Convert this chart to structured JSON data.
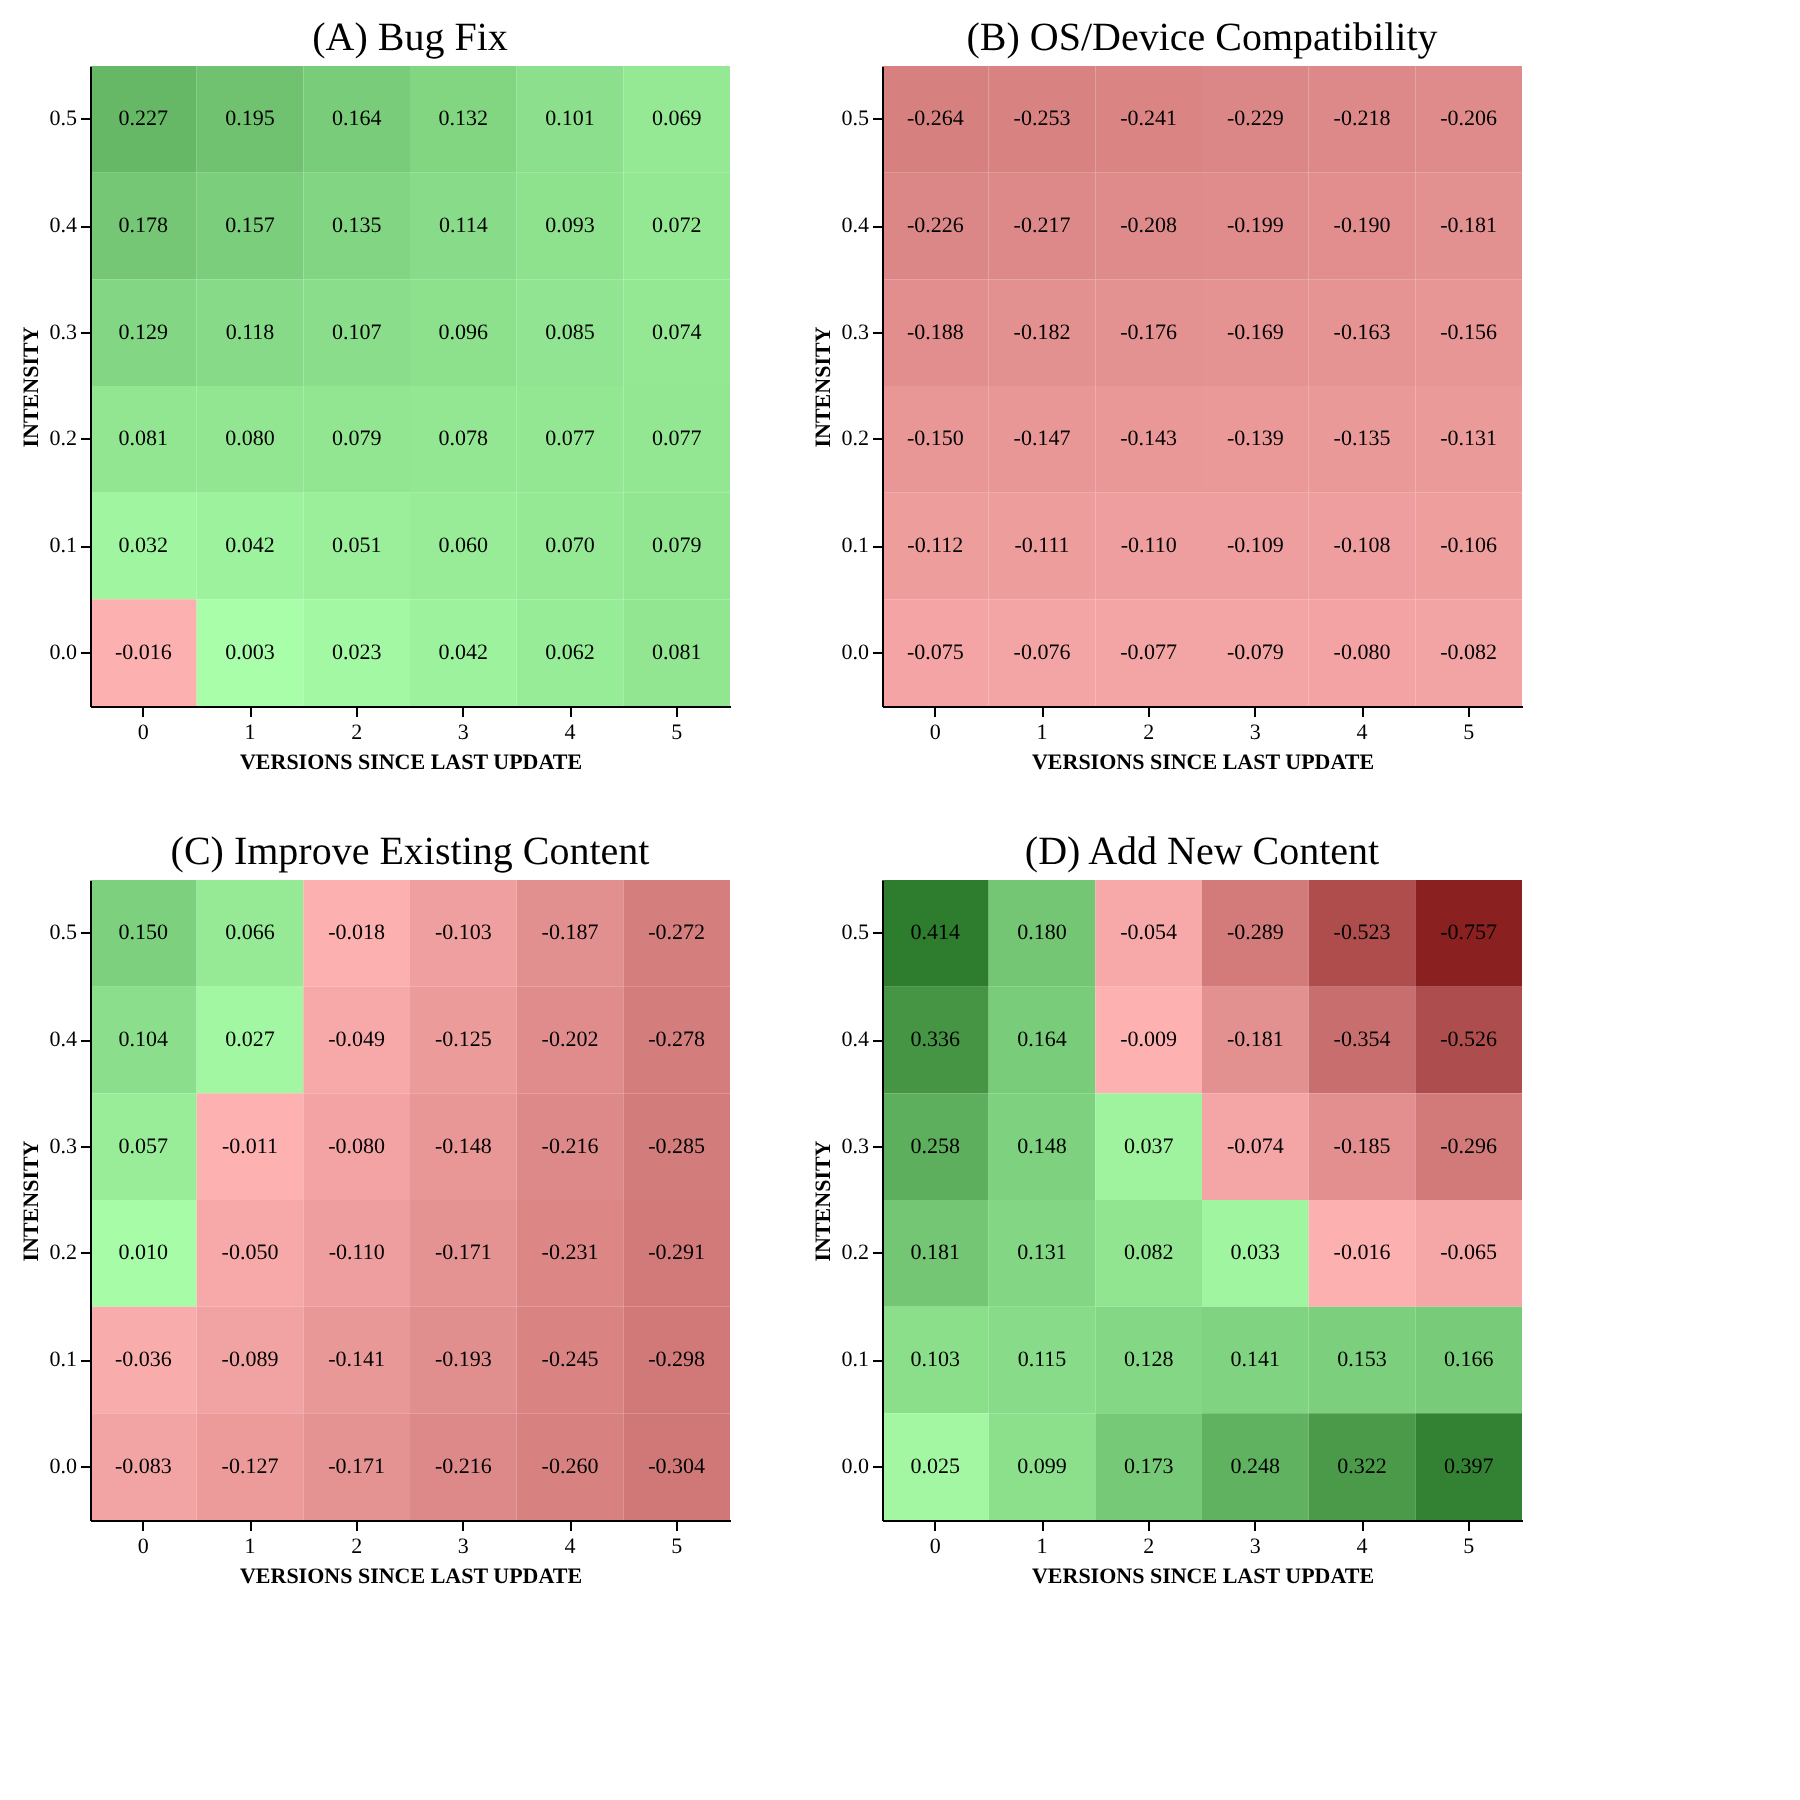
{
  "chart_data": [
    {
      "type": "heatmap",
      "data_labels": true,
      "cell_labels": [
        [
          "0.227",
          "0.195",
          "0.164",
          "0.132",
          "0.101",
          "0.069"
        ],
        [
          "0.178",
          "0.157",
          "0.135",
          "0.114",
          "0.093",
          "0.072"
        ],
        [
          "0.129",
          "0.118",
          "0.107",
          "0.096",
          "0.085",
          "0.074"
        ],
        [
          "0.081",
          "0.080",
          "0.079",
          "0.078",
          "0.077",
          "0.077"
        ],
        [
          "0.032",
          "0.042",
          "0.051",
          "0.060",
          "0.070",
          "0.079"
        ],
        [
          "-0.016",
          "0.003",
          "0.023",
          "0.042",
          "0.062",
          "0.081"
        ]
      ],
      "title": "(A) Bug Fix",
      "xlabel": "VERSIONS SINCE LAST UPDATE",
      "ylabel": "INTENSITY",
      "categories": [
        "0",
        "1",
        "2",
        "3",
        "4",
        "5"
      ],
      "y_categories": [
        "0.5",
        "0.4",
        "0.3",
        "0.2",
        "0.1",
        "0.0"
      ],
      "cells": [
        [
          0.227,
          0.195,
          0.164,
          0.132,
          0.101,
          0.069
        ],
        [
          0.178,
          0.157,
          0.135,
          0.114,
          0.093,
          0.072
        ],
        [
          0.129,
          0.118,
          0.107,
          0.096,
          0.085,
          0.074
        ],
        [
          0.081,
          0.08,
          0.079,
          0.078,
          0.077,
          0.077
        ],
        [
          0.032,
          0.042,
          0.051,
          0.06,
          0.07,
          0.079
        ],
        [
          -0.016,
          0.003,
          0.023,
          0.042,
          0.062,
          0.081
        ]
      ],
      "grid": false
    },
    {
      "type": "heatmap",
      "data_labels": true,
      "cell_labels": [
        [
          "-0.264",
          "-0.253",
          "-0.241",
          "-0.229",
          "-0.218",
          "-0.206"
        ],
        [
          "-0.226",
          "-0.217",
          "-0.208",
          "-0.199",
          "-0.190",
          "-0.181"
        ],
        [
          "-0.188",
          "-0.182",
          "-0.176",
          "-0.169",
          "-0.163",
          "-0.156"
        ],
        [
          "-0.150",
          "-0.147",
          "-0.143",
          "-0.139",
          "-0.135",
          "-0.131"
        ],
        [
          "-0.112",
          "-0.111",
          "-0.110",
          "-0.109",
          "-0.108",
          "-0.106"
        ],
        [
          "-0.075",
          "-0.076",
          "-0.077",
          "-0.079",
          "-0.080",
          "-0.082"
        ]
      ],
      "title": "(B) OS/Device Compatibility",
      "xlabel": "VERSIONS SINCE LAST UPDATE",
      "ylabel": "INTENSITY",
      "categories": [
        "0",
        "1",
        "2",
        "3",
        "4",
        "5"
      ],
      "y_categories": [
        "0.5",
        "0.4",
        "0.3",
        "0.2",
        "0.1",
        "0.0"
      ],
      "cells": [
        [
          -0.264,
          -0.253,
          -0.241,
          -0.229,
          -0.218,
          -0.206
        ],
        [
          -0.226,
          -0.217,
          -0.208,
          -0.199,
          -0.19,
          -0.181
        ],
        [
          -0.188,
          -0.182,
          -0.176,
          -0.169,
          -0.163,
          -0.156
        ],
        [
          -0.15,
          -0.147,
          -0.143,
          -0.139,
          -0.135,
          -0.131
        ],
        [
          -0.112,
          -0.111,
          -0.11,
          -0.109,
          -0.108,
          -0.106
        ],
        [
          -0.075,
          -0.076,
          -0.077,
          -0.079,
          -0.08,
          -0.082
        ]
      ],
      "grid": false
    },
    {
      "type": "heatmap",
      "data_labels": true,
      "cell_labels": [
        [
          "0.150",
          "0.066",
          "-0.018",
          "-0.103",
          "-0.187",
          "-0.272"
        ],
        [
          "0.104",
          "0.027",
          "-0.049",
          "-0.125",
          "-0.202",
          "-0.278"
        ],
        [
          "0.057",
          "-0.011",
          "-0.080",
          "-0.148",
          "-0.216",
          "-0.285"
        ],
        [
          "0.010",
          "-0.050",
          "-0.110",
          "-0.171",
          "-0.231",
          "-0.291"
        ],
        [
          "-0.036",
          "-0.089",
          "-0.141",
          "-0.193",
          "-0.245",
          "-0.298"
        ],
        [
          "-0.083",
          "-0.127",
          "-0.171",
          "-0.216",
          "-0.260",
          "-0.304"
        ]
      ],
      "title": "(C) Improve Existing Content",
      "xlabel": "VERSIONS SINCE LAST UPDATE",
      "ylabel": "INTENSITY",
      "categories": [
        "0",
        "1",
        "2",
        "3",
        "4",
        "5"
      ],
      "y_categories": [
        "0.5",
        "0.4",
        "0.3",
        "0.2",
        "0.1",
        "0.0"
      ],
      "cells": [
        [
          0.15,
          0.066,
          -0.018,
          -0.103,
          -0.187,
          -0.272
        ],
        [
          0.104,
          0.027,
          -0.049,
          -0.125,
          -0.202,
          -0.278
        ],
        [
          0.057,
          -0.011,
          -0.08,
          -0.148,
          -0.216,
          -0.285
        ],
        [
          0.01,
          -0.05,
          -0.11,
          -0.171,
          -0.231,
          -0.291
        ],
        [
          -0.036,
          -0.089,
          -0.141,
          -0.193,
          -0.245,
          -0.298
        ],
        [
          -0.083,
          -0.127,
          -0.171,
          -0.216,
          -0.26,
          -0.304
        ]
      ],
      "grid": false
    },
    {
      "type": "heatmap",
      "data_labels": true,
      "cell_labels": [
        [
          "0.414",
          "0.180",
          "-0.054",
          "-0.289",
          "-0.523",
          "-0.757"
        ],
        [
          "0.336",
          "0.164",
          "-0.009",
          "-0.181",
          "-0.354",
          "-0.526"
        ],
        [
          "0.258",
          "0.148",
          "0.037",
          "-0.074",
          "-0.185",
          "-0.296"
        ],
        [
          "0.181",
          "0.131",
          "0.082",
          "0.033",
          "-0.016",
          "-0.065"
        ],
        [
          "0.103",
          "0.115",
          "0.128",
          "0.141",
          "0.153",
          "0.166"
        ],
        [
          "0.025",
          "0.099",
          "0.173",
          "0.248",
          "0.322",
          "0.397"
        ]
      ],
      "title": "(D) Add New Content",
      "xlabel": "VERSIONS SINCE LAST UPDATE",
      "ylabel": "INTENSITY",
      "categories": [
        "0",
        "1",
        "2",
        "3",
        "4",
        "5"
      ],
      "y_categories": [
        "0.5",
        "0.4",
        "0.3",
        "0.2",
        "0.1",
        "0.0"
      ],
      "cells": [
        [
          0.414,
          0.18,
          -0.054,
          -0.289,
          -0.523,
          -0.757
        ],
        [
          0.336,
          0.164,
          -0.009,
          -0.181,
          -0.354,
          -0.526
        ],
        [
          0.258,
          0.148,
          0.037,
          -0.074,
          -0.185,
          -0.296
        ],
        [
          0.181,
          0.131,
          0.082,
          0.033,
          -0.016,
          -0.065
        ],
        [
          0.103,
          0.115,
          0.128,
          0.141,
          0.153,
          0.166
        ],
        [
          0.025,
          0.099,
          0.173,
          0.248,
          0.322,
          0.397
        ]
      ],
      "grid": false
    }
  ]
}
